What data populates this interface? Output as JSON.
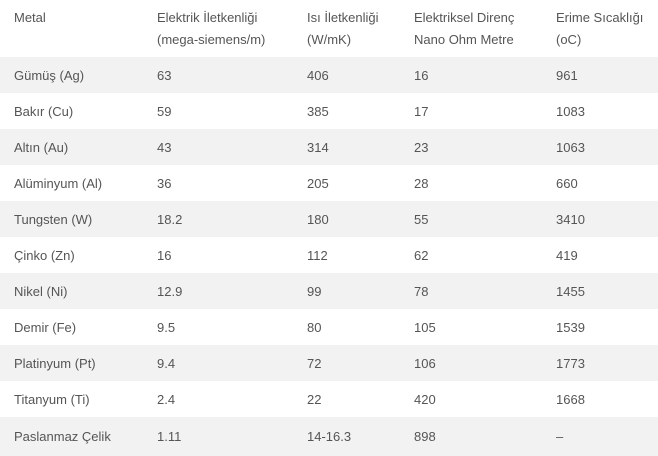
{
  "table": {
    "headers": [
      [
        "Metal"
      ],
      [
        "Elektrik İletkenliği",
        "(mega-siemens/m)"
      ],
      [
        "Isı İletkenliği",
        "(W/mK)"
      ],
      [
        "Elektriksel Direnç",
        "Nano Ohm Metre"
      ],
      [
        "Erime Sıcaklığı",
        "(oC)"
      ]
    ],
    "rows": [
      [
        "Gümüş (Ag)",
        "63",
        "406",
        "16",
        "961"
      ],
      [
        "Bakır (Cu)",
        "59",
        "385",
        "17",
        "1083"
      ],
      [
        "Altın (Au)",
        "43",
        "314",
        "23",
        "1063"
      ],
      [
        "Alüminyum (Al)",
        "36",
        "205",
        "28",
        "660"
      ],
      [
        "Tungsten (W)",
        "18.2",
        "180",
        "55",
        "3410"
      ],
      [
        "Çinko (Zn)",
        "16",
        "112",
        "62",
        "419"
      ],
      [
        "Nikel (Ni)",
        "12.9",
        "99",
        "78",
        "1455"
      ],
      [
        "Demir (Fe)",
        "9.5",
        "80",
        "105",
        "1539"
      ],
      [
        "Platinyum (Pt)",
        "9.4",
        "72",
        "106",
        "1773"
      ],
      [
        "Titanyum (Ti)",
        "2.4",
        "22",
        "420",
        "1668"
      ],
      [
        "Paslanmaz Çelik",
        "1.11",
        "14-16.3",
        "898",
        "–"
      ]
    ]
  },
  "colors": {
    "text": "#555555",
    "stripe": "#f2f2f2",
    "background": "#ffffff"
  }
}
